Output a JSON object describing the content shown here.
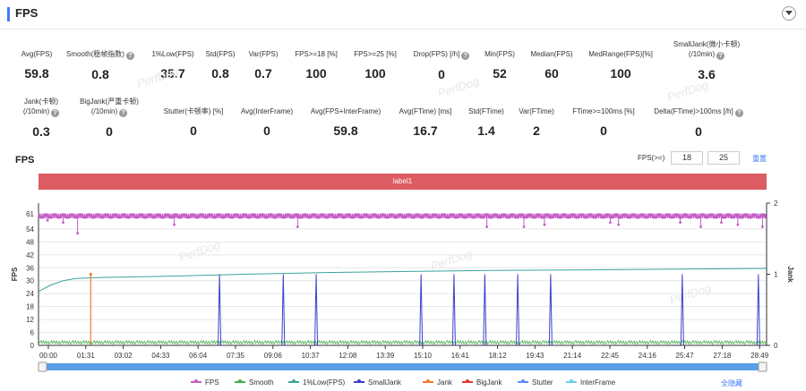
{
  "header": {
    "title": "FPS"
  },
  "metrics": [
    {
      "label": "Avg(FPS)",
      "value": "59.8",
      "help": false
    },
    {
      "label": "Smooth(稳帧指数)",
      "value": "0.8",
      "help": true
    },
    {
      "label": "1%Low(FPS)",
      "value": "35.7",
      "help": false
    },
    {
      "label": "Std(FPS)",
      "value": "0.8",
      "help": false
    },
    {
      "label": "Var(FPS)",
      "value": "0.7",
      "help": false
    },
    {
      "label": "FPS>=18 [%]",
      "value": "100",
      "help": false
    },
    {
      "label": "FPS>=25 [%]",
      "value": "100",
      "help": false
    },
    {
      "label": "Drop(FPS) [/h]",
      "value": "0",
      "help": true
    },
    {
      "label": "Min(FPS)",
      "value": "52",
      "help": false
    },
    {
      "label": "Median(FPS)",
      "value": "60",
      "help": false
    },
    {
      "label": "MedRange(FPS)[%]",
      "value": "100",
      "help": false
    },
    {
      "label": "SmallJank(微小卡顿)",
      "label2": "(/10min)",
      "value": "3.6",
      "help": true
    },
    {
      "label": "Jank(卡顿)",
      "label2": "(/10min)",
      "value": "0.3",
      "help": true
    },
    {
      "label": "BigJank(严重卡顿)",
      "label2": "(/10min)",
      "value": "0",
      "help": true
    },
    {
      "label": "Stutter(卡顿率) [%]",
      "value": "0",
      "help": false
    },
    {
      "label": "Avg(InterFrame)",
      "value": "0",
      "help": false
    },
    {
      "label": "Avg(FPS+InterFrame)",
      "value": "59.8",
      "help": false
    },
    {
      "label": "Avg(FTime) [ms]",
      "value": "16.7",
      "help": false
    },
    {
      "label": "Std(FTime)",
      "value": "1.4",
      "help": false
    },
    {
      "label": "Var(FTime)",
      "value": "2",
      "help": false
    },
    {
      "label": "FTime>=100ms [%]",
      "value": "0",
      "help": false
    },
    {
      "label": "Delta(FTime)>100ms [/h]",
      "value": "0",
      "help": true
    }
  ],
  "watermark": "PerfDog",
  "chart_section": {
    "title": "FPS",
    "threshold_label": "FPS(>=)",
    "threshold_1": "18",
    "threshold_2": "25",
    "reset_label": "重置",
    "label_bar": "label1"
  },
  "chart_data": {
    "type": "line",
    "ylabel": "FPS",
    "y2label": "Jank",
    "yticks": [
      0,
      6,
      12,
      18,
      24,
      30,
      36,
      42,
      48,
      54,
      61
    ],
    "y2ticks": [
      0,
      1,
      2
    ],
    "ylim": [
      0,
      66
    ],
    "y2lim": [
      0,
      2
    ],
    "x_ticks": [
      "00:00",
      "01:31",
      "03:02",
      "04:33",
      "06:04",
      "07:35",
      "09:06",
      "10:37",
      "12:08",
      "13:39",
      "15:10",
      "16:41",
      "18:12",
      "19:43",
      "21:14",
      "22:45",
      "24:16",
      "25:47",
      "27:18",
      "28:49"
    ],
    "x_range_seconds": [
      0,
      1770
    ],
    "series": [
      {
        "name": "FPS",
        "color": "#c45cc7",
        "baseline": 60,
        "dips": [
          [
            22,
            58
          ],
          [
            60,
            57
          ],
          [
            95,
            52
          ],
          [
            330,
            56
          ],
          [
            630,
            55
          ],
          [
            1090,
            55
          ],
          [
            1180,
            55
          ],
          [
            1230,
            56
          ],
          [
            1390,
            57
          ],
          [
            1410,
            56
          ],
          [
            1560,
            57
          ],
          [
            1610,
            55
          ],
          [
            1660,
            57
          ],
          [
            1700,
            56
          ],
          [
            1760,
            55
          ]
        ]
      },
      {
        "name": "Smooth",
        "color": "#47b04b",
        "baseline": 1.5
      },
      {
        "name": "1%Low(FPS)",
        "color": "#3aa39b",
        "points": [
          [
            0,
            25
          ],
          [
            30,
            28
          ],
          [
            60,
            30
          ],
          [
            90,
            31
          ],
          [
            150,
            31.5
          ],
          [
            300,
            32
          ],
          [
            500,
            33
          ],
          [
            700,
            33.8
          ],
          [
            900,
            34.3
          ],
          [
            1100,
            34.8
          ],
          [
            1300,
            35
          ],
          [
            1500,
            35.3
          ],
          [
            1770,
            35.7
          ]
        ]
      },
      {
        "name": "SmallJank",
        "color": "#3b3fcc",
        "spikes_seconds": [
          440,
          595,
          675,
          930,
          1010,
          1085,
          1165,
          1245,
          1565,
          1750
        ],
        "spike_value": 1
      },
      {
        "name": "Jank",
        "color": "#f07b2e",
        "spikes_seconds": [
          127
        ],
        "spike_value": 1
      },
      {
        "name": "BigJank",
        "color": "#e8392e"
      },
      {
        "name": "Stutter",
        "color": "#5b8ff9"
      },
      {
        "name": "InterFrame",
        "color": "#68cfe8"
      }
    ]
  },
  "legend_hide_all": "全隐藏"
}
